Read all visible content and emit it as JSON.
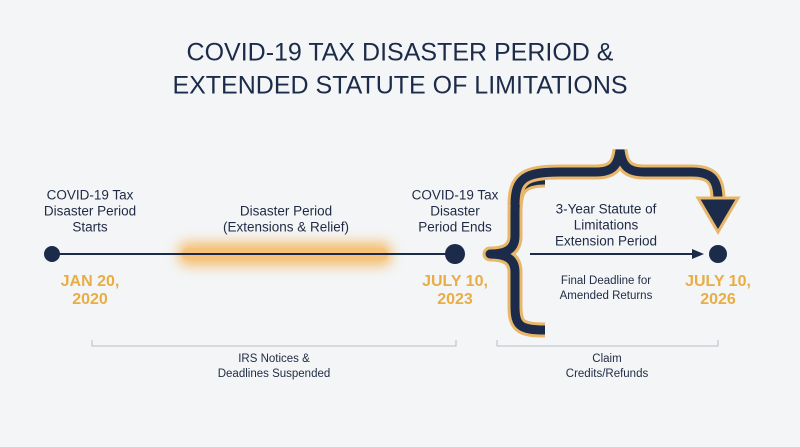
{
  "title": [
    "COVID-19 TAX DISASTER PERIOD &",
    "EXTENDED STATUTE OF LIMITATIONS"
  ],
  "start": {
    "label": [
      "COVID-19 Tax",
      "Disaster Period",
      "Starts"
    ],
    "date": [
      "JAN 20,",
      "2020"
    ]
  },
  "period": {
    "label": [
      "Disaster Period",
      "(Extensions & Relief)"
    ]
  },
  "end": {
    "label": [
      "COVID-19 Tax",
      "Disaster",
      "Period Ends"
    ],
    "date": [
      "JULY 10,",
      "2023"
    ]
  },
  "extension": {
    "label": [
      "3-Year Statute of",
      "Limitations",
      "Extension Period"
    ],
    "note": [
      "Final Deadline for",
      "Amended Returns"
    ]
  },
  "final": {
    "date": [
      "JULY 10,",
      "2026"
    ]
  },
  "brackets": [
    {
      "label": [
        "IRS Notices &",
        "Deadlines Suspended"
      ]
    },
    {
      "label": [
        "Claim",
        "Credits/Refunds"
      ]
    }
  ]
}
